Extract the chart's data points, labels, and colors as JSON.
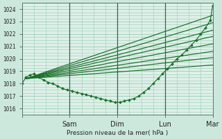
{
  "bg_color": "#cce8dc",
  "grid_color": "#99ccb3",
  "line_color": "#1a6e2a",
  "marker_color": "#1a6e2a",
  "xlabel": "Pression niveau de la mer( hPa )",
  "bg_plot_color": "#ddf0e8",
  "ylim": [
    1015.5,
    1024.5
  ],
  "xlim": [
    0.0,
    4.0
  ],
  "yticks": [
    1016,
    1017,
    1018,
    1019,
    1020,
    1021,
    1022,
    1023,
    1024
  ],
  "xticks": [
    0.0,
    1.0,
    2.0,
    3.0,
    4.0
  ],
  "xlabels": [
    "",
    "Sam",
    "Dim",
    "Lun",
    "Mar"
  ],
  "straight_lines": [
    {
      "x": [
        0.08,
        4.0
      ],
      "y": [
        1018.4,
        1023.5
      ]
    },
    {
      "x": [
        0.08,
        4.0
      ],
      "y": [
        1018.4,
        1022.9
      ]
    },
    {
      "x": [
        0.08,
        4.0
      ],
      "y": [
        1018.4,
        1022.3
      ]
    },
    {
      "x": [
        0.08,
        4.0
      ],
      "y": [
        1018.4,
        1021.8
      ]
    },
    {
      "x": [
        0.08,
        4.0
      ],
      "y": [
        1018.4,
        1021.2
      ]
    },
    {
      "x": [
        0.08,
        4.0
      ],
      "y": [
        1018.4,
        1020.6
      ]
    },
    {
      "x": [
        0.08,
        4.0
      ],
      "y": [
        1018.4,
        1020.1
      ]
    },
    {
      "x": [
        0.08,
        4.0
      ],
      "y": [
        1018.4,
        1019.5
      ]
    }
  ],
  "detail_series": [
    {
      "x": [
        0.0,
        0.08,
        0.17,
        0.25,
        0.35,
        0.45,
        0.55,
        0.65,
        0.75,
        0.85,
        0.95,
        1.05,
        1.15,
        1.25,
        1.35,
        1.45,
        1.55,
        1.65,
        1.75,
        1.85,
        1.95,
        2.05,
        2.15,
        2.25,
        2.35,
        2.45,
        2.55,
        2.65,
        2.75,
        2.85,
        2.95,
        3.05,
        3.15,
        3.25,
        3.35,
        3.45,
        3.55,
        3.65,
        3.75,
        3.85,
        3.95,
        4.0
      ],
      "y": [
        1018.0,
        1018.5,
        1018.7,
        1018.8,
        1018.5,
        1018.3,
        1018.1,
        1018.0,
        1017.8,
        1017.6,
        1017.5,
        1017.4,
        1017.3,
        1017.2,
        1017.1,
        1017.0,
        1016.9,
        1016.8,
        1016.7,
        1016.6,
        1016.5,
        1016.5,
        1016.6,
        1016.7,
        1016.8,
        1017.0,
        1017.3,
        1017.6,
        1018.0,
        1018.4,
        1018.8,
        1019.2,
        1019.6,
        1020.0,
        1020.3,
        1020.7,
        1021.1,
        1021.5,
        1022.0,
        1022.5,
        1023.1,
        1024.3
      ]
    }
  ]
}
